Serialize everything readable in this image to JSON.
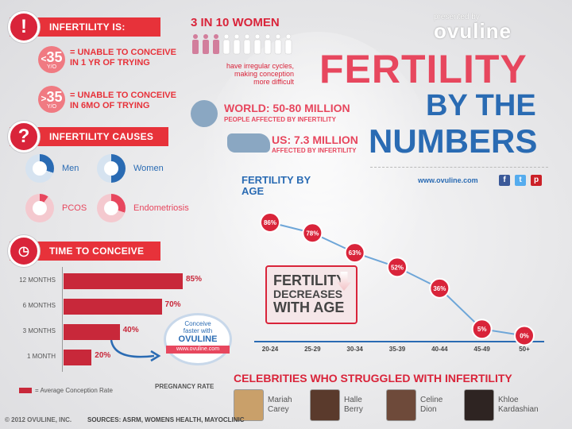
{
  "infertility": {
    "title": "INFERTILITY IS:",
    "under35_num": "35",
    "under35_prefix": "<",
    "under35_yr": "Y/O",
    "under35_text_1": "= UNABLE TO CONCEIVE",
    "under35_text_2": "IN 1 YR OF TRYING",
    "over35_num": "35",
    "over35_prefix": ">",
    "over35_yr": "Y/O",
    "over35_text_1": "= UNABLE TO CONCEIVE",
    "over35_text_2": "IN 6MO OF TRYING"
  },
  "women": {
    "title": "3 IN 10 WOMEN",
    "line1": "have irregular cycles,",
    "line2": "making conception",
    "line3": "more difficult"
  },
  "world": {
    "label": "WORLD: 50-80 MILLION",
    "sub": "PEOPLE AFFECTED BY INFERTILITY"
  },
  "us": {
    "label": "US: 7.3 MILLION",
    "sub": "AFFECTED BY INFERTILITY"
  },
  "brand": {
    "presented_by": "presented by",
    "logo": "ovuline",
    "title_1": "FERTILITY",
    "title_2": "BY THE",
    "title_3": "NUMBERS",
    "url": "www.ovuline.com",
    "colors": {
      "pink": "#e7475e",
      "blue": "#2a6bb3",
      "red": "#d9243a"
    }
  },
  "causes": {
    "title": "INFERTILITY CAUSES",
    "items": [
      {
        "label": "Men",
        "pct": "30%",
        "color": "#2a6bb3",
        "value": 30
      },
      {
        "label": "Women",
        "pct": "50%",
        "color": "#2a6bb3",
        "value": 50
      },
      {
        "label": "PCOS",
        "pct": "10%",
        "color": "#e7475e",
        "value": 10
      },
      {
        "label": "Endometriosis",
        "pct": "30%",
        "color": "#e7475e",
        "value": 30
      }
    ]
  },
  "time_to_conceive": {
    "title": "TIME TO CONCEIVE",
    "rows": [
      {
        "label": "12 MONTHS",
        "pct": "85%",
        "value": 85
      },
      {
        "label": "6 MONTHS",
        "pct": "70%",
        "value": 70
      },
      {
        "label": "3 MONTHS",
        "pct": "40%",
        "value": 40
      },
      {
        "label": "1 MONTH",
        "pct": "20%",
        "value": 20
      }
    ],
    "legend": "= Average Conception Rate",
    "axis_label": "PREGNANCY RATE",
    "promo_1": "Conceive",
    "promo_2": "faster with",
    "promo_3": "OVULINE",
    "promo_url": "www.ovuline.com"
  },
  "chart_data": {
    "type": "line",
    "title": "FERTILITY BY AGE",
    "x": [
      "20-24",
      "25-29",
      "30-34",
      "35-39",
      "40-44",
      "45-49",
      "50+"
    ],
    "series": [
      {
        "values": [
          86,
          78,
          63,
          52,
          36,
          5,
          0
        ]
      }
    ],
    "labels": [
      "86%",
      "78%",
      "63%",
      "52%",
      "36%",
      "5%",
      "0%"
    ],
    "ylim": [
      0,
      100
    ],
    "annotation_1": "FERTILITY",
    "annotation_2": "DECREASES",
    "annotation_3": "WITH AGE"
  },
  "celebrities": {
    "title": "CELEBRITIES WHO STRUGGLED WITH INFERTILITY",
    "people": [
      {
        "first": "Mariah",
        "last": "Carey"
      },
      {
        "first": "Halle",
        "last": "Berry"
      },
      {
        "first": "Celine",
        "last": "Dion"
      },
      {
        "first": "Khloe",
        "last": "Kardashian"
      }
    ]
  },
  "footer": {
    "copyright": "© 2012 OVULINE, INC.",
    "sources": "SOURCES: ASRM, WOMENS HEALTH, MAYOCLINIC"
  },
  "icons": {
    "alert": "!",
    "question": "?"
  }
}
